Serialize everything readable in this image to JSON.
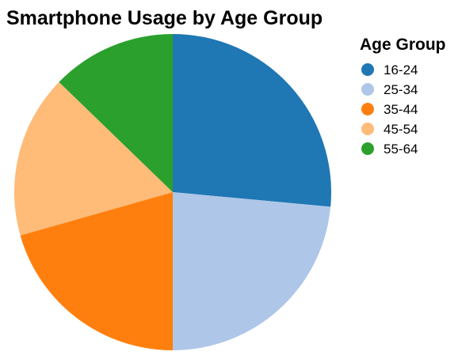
{
  "chart_data": {
    "type": "pie",
    "title": "Smartphone Usage by Age Group",
    "legend_title": "Age Group",
    "legend_position": "right",
    "start_angle_deg": 0,
    "direction": "clockwise",
    "categories": [
      "16-24",
      "25-34",
      "35-44",
      "45-54",
      "55-64"
    ],
    "values": [
      27,
      24,
      21,
      17,
      13
    ],
    "colors": [
      "#1f77b4",
      "#aec7e8",
      "#ff7f0e",
      "#ffbb78",
      "#2ca02c"
    ]
  }
}
